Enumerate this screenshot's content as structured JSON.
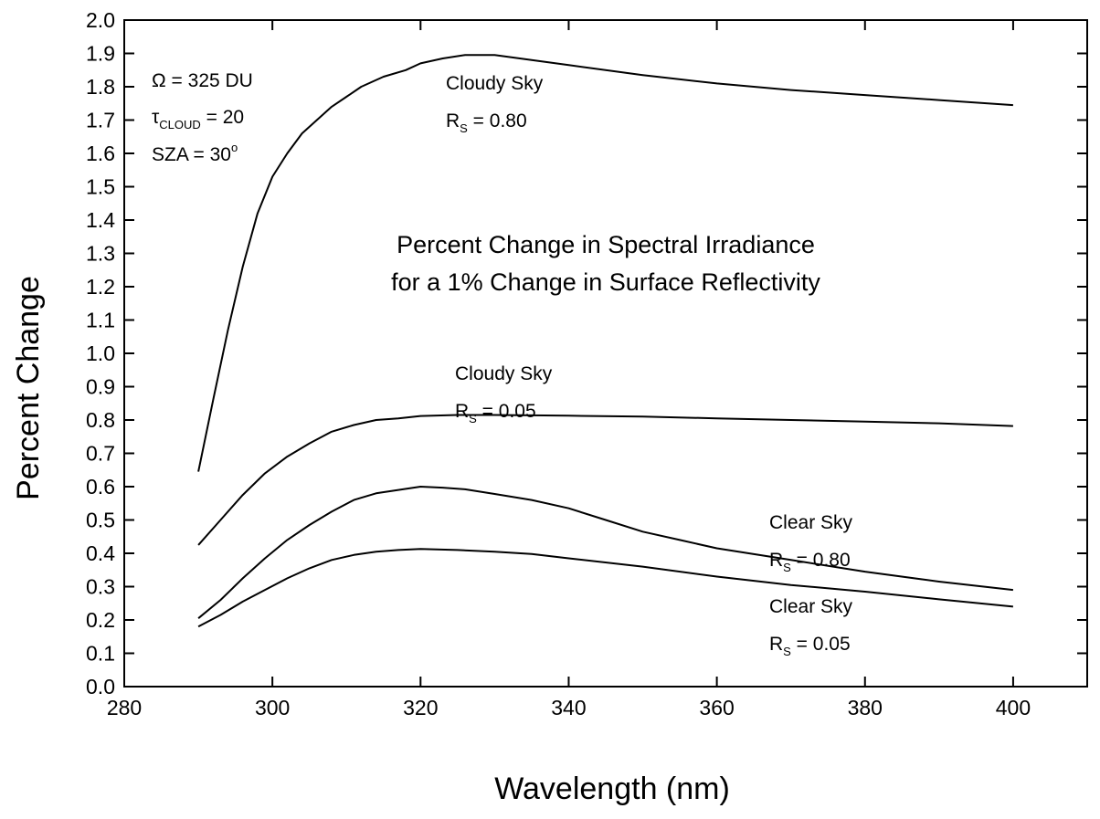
{
  "chart_data": {
    "type": "line",
    "title_lines": [
      "Percent Change in Spectral Irradiance",
      "for a 1% Change in Surface Reflectivity"
    ],
    "xlabel": "Wavelength (nm)",
    "ylabel": "Percent Change",
    "xlim": [
      280,
      410
    ],
    "ylim": [
      0.0,
      2.0
    ],
    "x_ticks": [
      280,
      300,
      320,
      340,
      360,
      380,
      400
    ],
    "y_ticks": [
      0.0,
      0.1,
      0.2,
      0.3,
      0.4,
      0.5,
      0.6,
      0.7,
      0.8,
      0.9,
      1.0,
      1.1,
      1.2,
      1.3,
      1.4,
      1.5,
      1.6,
      1.7,
      1.8,
      1.9,
      2.0
    ],
    "grid": false,
    "line_color": "#000000",
    "conditions": {
      "ozone": {
        "symbol": "Ω",
        "text": " = 325 DU"
      },
      "tau": {
        "symbol": "τ",
        "subscript": "CLOUD",
        "text": " = 20"
      },
      "sza": {
        "text": "SZA = 30",
        "superscript": "o"
      }
    },
    "series": [
      {
        "label": "Cloudy Sky",
        "rs_value": " = 0.80",
        "points": [
          [
            290,
            0.645
          ],
          [
            292,
            0.86
          ],
          [
            294,
            1.07
          ],
          [
            296,
            1.26
          ],
          [
            298,
            1.42
          ],
          [
            300,
            1.53
          ],
          [
            302,
            1.6
          ],
          [
            304,
            1.66
          ],
          [
            306,
            1.7
          ],
          [
            308,
            1.74
          ],
          [
            310,
            1.77
          ],
          [
            312,
            1.8
          ],
          [
            315,
            1.83
          ],
          [
            318,
            1.85
          ],
          [
            320,
            1.87
          ],
          [
            323,
            1.885
          ],
          [
            326,
            1.895
          ],
          [
            330,
            1.895
          ],
          [
            335,
            1.88
          ],
          [
            340,
            1.865
          ],
          [
            350,
            1.835
          ],
          [
            360,
            1.81
          ],
          [
            370,
            1.79
          ],
          [
            380,
            1.775
          ],
          [
            390,
            1.76
          ],
          [
            400,
            1.745
          ]
        ]
      },
      {
        "label": "Cloudy Sky",
        "rs_value": " = 0.05",
        "points": [
          [
            290,
            0.425
          ],
          [
            293,
            0.5
          ],
          [
            296,
            0.575
          ],
          [
            299,
            0.64
          ],
          [
            302,
            0.69
          ],
          [
            305,
            0.73
          ],
          [
            308,
            0.765
          ],
          [
            311,
            0.785
          ],
          [
            314,
            0.8
          ],
          [
            317,
            0.805
          ],
          [
            320,
            0.812
          ],
          [
            325,
            0.815
          ],
          [
            330,
            0.815
          ],
          [
            340,
            0.813
          ],
          [
            350,
            0.81
          ],
          [
            360,
            0.805
          ],
          [
            370,
            0.8
          ],
          [
            380,
            0.795
          ],
          [
            390,
            0.79
          ],
          [
            400,
            0.782
          ]
        ]
      },
      {
        "label": "Clear Sky",
        "rs_value": " = 0.80",
        "points": [
          [
            290,
            0.205
          ],
          [
            293,
            0.26
          ],
          [
            296,
            0.325
          ],
          [
            299,
            0.385
          ],
          [
            302,
            0.44
          ],
          [
            305,
            0.485
          ],
          [
            308,
            0.525
          ],
          [
            311,
            0.56
          ],
          [
            314,
            0.58
          ],
          [
            317,
            0.59
          ],
          [
            320,
            0.6
          ],
          [
            323,
            0.597
          ],
          [
            326,
            0.592
          ],
          [
            330,
            0.578
          ],
          [
            335,
            0.56
          ],
          [
            340,
            0.535
          ],
          [
            345,
            0.5
          ],
          [
            350,
            0.465
          ],
          [
            355,
            0.44
          ],
          [
            360,
            0.415
          ],
          [
            370,
            0.38
          ],
          [
            380,
            0.345
          ],
          [
            390,
            0.315
          ],
          [
            400,
            0.29
          ]
        ]
      },
      {
        "label": "Clear Sky",
        "rs_value": " = 0.05",
        "points": [
          [
            290,
            0.18
          ],
          [
            293,
            0.215
          ],
          [
            296,
            0.255
          ],
          [
            299,
            0.29
          ],
          [
            302,
            0.325
          ],
          [
            305,
            0.355
          ],
          [
            308,
            0.38
          ],
          [
            311,
            0.395
          ],
          [
            314,
            0.405
          ],
          [
            317,
            0.41
          ],
          [
            320,
            0.413
          ],
          [
            325,
            0.41
          ],
          [
            330,
            0.405
          ],
          [
            335,
            0.398
          ],
          [
            340,
            0.385
          ],
          [
            350,
            0.36
          ],
          [
            360,
            0.33
          ],
          [
            370,
            0.305
          ],
          [
            380,
            0.285
          ],
          [
            390,
            0.262
          ],
          [
            400,
            0.24
          ]
        ]
      }
    ]
  }
}
